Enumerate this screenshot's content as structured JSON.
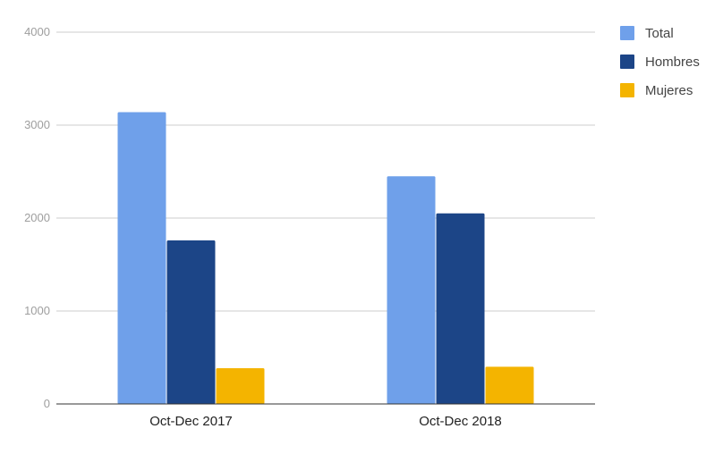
{
  "chart_data": {
    "type": "bar",
    "title": "",
    "xlabel": "",
    "ylabel": "",
    "categories": [
      "Oct-Dec 2017",
      "Oct-Dec 2018"
    ],
    "series": [
      {
        "name": "Total",
        "values": [
          3140,
          2450
        ],
        "color": "#6fa0ea"
      },
      {
        "name": "Hombres",
        "values": [
          1760,
          2050
        ],
        "color": "#1c4587"
      },
      {
        "name": "Mujeres",
        "values": [
          385,
          400
        ],
        "color": "#f4b400"
      }
    ],
    "ylim": [
      0,
      4000
    ],
    "yticks": [
      "0",
      "1000",
      "2000",
      "3000",
      "4000"
    ],
    "grid": true,
    "legend_position": "right"
  }
}
